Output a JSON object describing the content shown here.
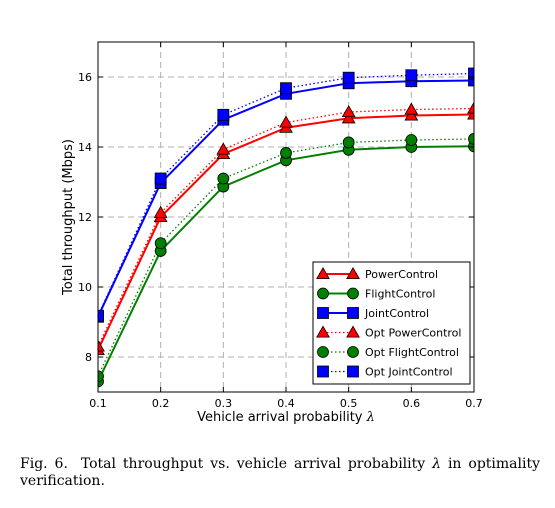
{
  "chart_data": {
    "type": "line",
    "xlabel": "Vehicle arrival probability",
    "xlabel_symbol": "λ",
    "ylabel": "Total throughput (Mbps)",
    "x": [
      0.1,
      0.2,
      0.3,
      0.4,
      0.5,
      0.6,
      0.7
    ],
    "x_ticks": [
      "0.1",
      "0.2",
      "0.3",
      "0.4",
      "0.5",
      "0.6",
      "0.7"
    ],
    "y_ticks": [
      "8",
      "10",
      "12",
      "14",
      "16"
    ],
    "xlim": [
      0.1,
      0.7
    ],
    "ylim": [
      7,
      17
    ],
    "grid": true,
    "legend_position": "bottom-right",
    "series": [
      {
        "name": "PowerControl",
        "color": "#ff0000",
        "marker": "triangle",
        "line": "solid",
        "values": [
          8.2,
          12.0,
          13.8,
          14.55,
          14.82,
          14.9,
          14.93
        ]
      },
      {
        "name": "FlightControl",
        "color": "#008000",
        "marker": "circle",
        "line": "solid",
        "values": [
          7.3,
          11.03,
          12.87,
          13.62,
          13.92,
          14.0,
          14.02
        ]
      },
      {
        "name": "JointControl",
        "color": "#0000ff",
        "marker": "square",
        "line": "solid",
        "values": [
          9.15,
          12.97,
          14.78,
          15.52,
          15.82,
          15.88,
          15.9
        ]
      },
      {
        "name": "Opt PowerControl",
        "color": "#ff0000",
        "marker": "triangle",
        "line": "dotted",
        "values": [
          8.3,
          12.12,
          13.93,
          14.7,
          15.0,
          15.07,
          15.1
        ]
      },
      {
        "name": "Opt FlightControl",
        "color": "#008000",
        "marker": "circle",
        "line": "dotted",
        "values": [
          7.45,
          11.25,
          13.1,
          13.83,
          14.13,
          14.2,
          14.23
        ]
      },
      {
        "name": "Opt JointControl",
        "color": "#0000ff",
        "marker": "square",
        "line": "dotted",
        "values": [
          9.18,
          13.1,
          14.92,
          15.68,
          15.98,
          16.05,
          16.1
        ]
      }
    ]
  },
  "caption": {
    "label": "Fig. 6.",
    "text_before": "Total throughput vs. vehicle arrival probability",
    "symbol": "λ",
    "text_after": "in optimality verification."
  }
}
